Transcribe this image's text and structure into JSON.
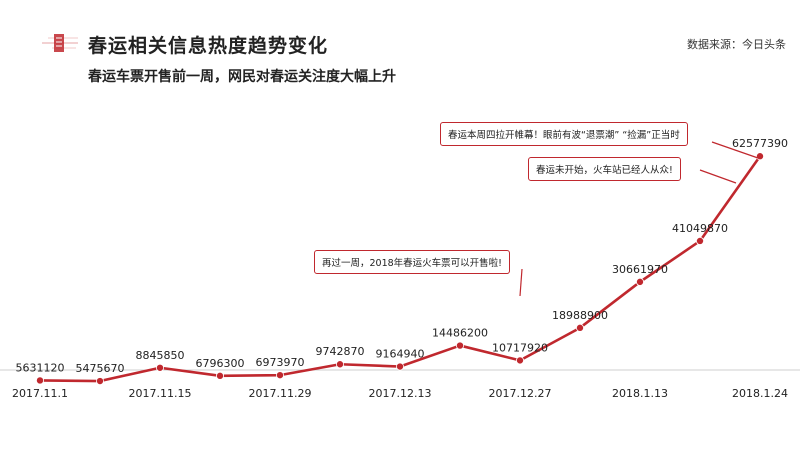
{
  "header": {
    "title": "春运相关信息热度趋势变化",
    "subtitle": "春运车票开售前一周，网民对春运关注度大幅上升",
    "source": "数据来源：今日头条"
  },
  "colors": {
    "accent": "#c0282e",
    "line": "#c0282e",
    "text": "#222222"
  },
  "callouts": [
    {
      "text": "再过一周，2018年春运火车票可以开售啦!",
      "points_to": "2017.12.27"
    },
    {
      "text": "春运本周四拉开帷幕！眼前有波“退票潮” “捡漏”正当时",
      "points_to": "2018.1.24"
    },
    {
      "text": "春运未开始，火车站已经人从众!",
      "points_to": "2018.1.24"
    }
  ],
  "chart_data": {
    "type": "line",
    "title": "春运相关信息热度趋势变化",
    "x_tick_labels": [
      "2017.11.1",
      "2017.11.15",
      "2017.11.29",
      "2017.12.13",
      "2017.12.27",
      "2018.1.13",
      "2018.1.24"
    ],
    "series": [
      {
        "values": [
          5631120,
          5475670,
          8845850,
          6796300,
          6973970,
          9742870,
          9164940,
          14486200,
          10717920,
          18988900,
          30661970,
          41049870,
          62577390
        ]
      }
    ],
    "grid": false,
    "legend": "none"
  }
}
